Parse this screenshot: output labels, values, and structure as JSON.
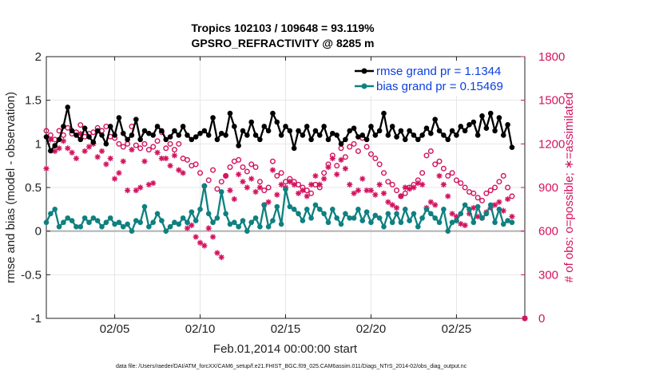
{
  "chart_data": {
    "type": "line",
    "title": "Tropics 102103 / 109648 = 93.119%",
    "subtitle": "GPSRO_REFRACTIVITY @ 8285 m",
    "xlabel": "Feb.01,2014 00:00:00 start",
    "ylabel": "rmse and bias (model - observation)",
    "y2label": "# of obs: o=possible; ∗=assimilated",
    "footnote": "data file: /Users/raeder/DAI/ATM_forcXX/CAM6_setup/f.e21.FHIST_BGC.f09_025.CAM6assim.011/Diags_NTrS_2014-02/obs_diag_output.nc",
    "xlim": [
      1,
      29
    ],
    "ylim": [
      -1,
      2
    ],
    "y2lim": [
      0,
      1800
    ],
    "xticks": [
      5,
      10,
      15,
      20,
      25
    ],
    "xticklabels": [
      "02/05",
      "02/10",
      "02/15",
      "02/20",
      "02/25"
    ],
    "yticks": [
      -1,
      -0.5,
      0,
      0.5,
      1,
      1.5,
      2
    ],
    "yticklabels": [
      "-1",
      "-0.5",
      "0",
      "0.5",
      "1",
      "1.5",
      "2"
    ],
    "y2ticks": [
      0,
      300,
      600,
      900,
      1200,
      1500,
      1800
    ],
    "y2ticklabels": [
      "0",
      "300",
      "600",
      "900",
      "1200",
      "1500",
      "1800"
    ],
    "grid": true,
    "legend": "top-right",
    "colors": {
      "rmse": "#000000",
      "bias": "#0f8080",
      "obs": "#d3135f",
      "zero": "#b0b0b0"
    },
    "series": [
      {
        "name": "rmse",
        "label": "rmse grand pr = 1.1344",
        "x": [
          1.0,
          1.25,
          1.5,
          1.75,
          2.0,
          2.25,
          2.5,
          2.75,
          3.0,
          3.25,
          3.5,
          3.75,
          4.0,
          4.25,
          4.5,
          4.75,
          5.0,
          5.25,
          5.5,
          5.75,
          6.0,
          6.25,
          6.5,
          6.75,
          7.0,
          7.25,
          7.5,
          7.75,
          8.0,
          8.25,
          8.5,
          8.75,
          9.0,
          9.25,
          9.5,
          9.75,
          10.0,
          10.25,
          10.5,
          10.75,
          11.0,
          11.25,
          11.5,
          11.75,
          12.0,
          12.25,
          12.5,
          12.75,
          13.0,
          13.25,
          13.5,
          13.75,
          14.0,
          14.25,
          14.5,
          14.75,
          15.0,
          15.25,
          15.5,
          15.75,
          16.0,
          16.25,
          16.5,
          16.75,
          17.0,
          17.25,
          17.5,
          17.75,
          18.0,
          18.25,
          18.5,
          18.75,
          19.0,
          19.25,
          19.5,
          19.75,
          20.0,
          20.25,
          20.5,
          20.75,
          21.0,
          21.25,
          21.5,
          21.75,
          22.0,
          22.25,
          22.5,
          22.75,
          23.0,
          23.25,
          23.5,
          23.75,
          24.0,
          24.25,
          24.5,
          24.75,
          25.0,
          25.25,
          25.5,
          25.75,
          26.0,
          26.25,
          26.5,
          26.75,
          27.0,
          27.25,
          27.5,
          27.75,
          28.0,
          28.25
        ],
        "values": [
          1.08,
          0.92,
          0.98,
          1.05,
          1.2,
          1.42,
          1.15,
          1.1,
          1.05,
          1.18,
          1.08,
          1.02,
          1.15,
          1.1,
          1.0,
          1.2,
          1.1,
          1.3,
          1.12,
          1.05,
          1.1,
          1.28,
          1.05,
          1.15,
          1.12,
          1.1,
          1.2,
          1.15,
          1.05,
          1.08,
          1.15,
          1.1,
          1.2,
          1.1,
          1.05,
          1.08,
          1.12,
          1.15,
          1.1,
          1.3,
          1.05,
          1.12,
          1.1,
          1.35,
          1.2,
          0.98,
          1.15,
          1.1,
          1.25,
          1.1,
          1.05,
          1.2,
          1.15,
          1.35,
          1.25,
          1.1,
          1.2,
          1.15,
          0.95,
          1.15,
          1.1,
          1.2,
          1.05,
          1.15,
          1.1,
          1.2,
          1.05,
          1.12,
          1.1,
          1.0,
          1.05,
          1.15,
          1.18,
          1.08,
          1.1,
          1.05,
          1.2,
          1.1,
          1.15,
          1.35,
          1.1,
          1.2,
          1.08,
          1.15,
          1.05,
          1.15,
          1.1,
          1.05,
          1.1,
          1.18,
          1.12,
          1.28,
          1.15,
          1.1,
          1.05,
          1.15,
          1.1,
          1.2,
          1.15,
          1.22,
          1.25,
          1.1,
          1.32,
          1.18,
          1.35,
          1.15,
          1.3,
          1.1,
          1.22,
          0.96
        ]
      },
      {
        "name": "bias",
        "label": "bias grand pr = 0.15469",
        "x": [
          1.0,
          1.25,
          1.5,
          1.75,
          2.0,
          2.25,
          2.5,
          2.75,
          3.0,
          3.25,
          3.5,
          3.75,
          4.0,
          4.25,
          4.5,
          4.75,
          5.0,
          5.25,
          5.5,
          5.75,
          6.0,
          6.25,
          6.5,
          6.75,
          7.0,
          7.25,
          7.5,
          7.75,
          8.0,
          8.25,
          8.5,
          8.75,
          9.0,
          9.25,
          9.5,
          9.75,
          10.0,
          10.25,
          10.5,
          10.75,
          11.0,
          11.25,
          11.5,
          11.75,
          12.0,
          12.25,
          12.5,
          12.75,
          13.0,
          13.25,
          13.5,
          13.75,
          14.0,
          14.25,
          14.5,
          14.75,
          15.0,
          15.25,
          15.5,
          15.75,
          16.0,
          16.25,
          16.5,
          16.75,
          17.0,
          17.25,
          17.5,
          17.75,
          18.0,
          18.25,
          18.5,
          18.75,
          19.0,
          19.25,
          19.5,
          19.75,
          20.0,
          20.25,
          20.5,
          20.75,
          21.0,
          21.25,
          21.5,
          21.75,
          22.0,
          22.25,
          22.5,
          22.75,
          23.0,
          23.25,
          23.5,
          23.75,
          24.0,
          24.25,
          24.5,
          24.75,
          25.0,
          25.25,
          25.5,
          25.75,
          26.0,
          26.25,
          26.5,
          26.75,
          27.0,
          27.25,
          27.5,
          27.75,
          28.0,
          28.25
        ],
        "values": [
          0.1,
          0.2,
          0.25,
          0.05,
          0.1,
          0.15,
          0.12,
          0.05,
          0.05,
          0.15,
          0.1,
          0.15,
          0.12,
          0.05,
          0.1,
          0.15,
          0.08,
          0.1,
          0.05,
          0.08,
          0.0,
          0.12,
          0.1,
          0.28,
          0.05,
          0.1,
          0.2,
          0.12,
          0.0,
          0.05,
          0.1,
          0.08,
          0.15,
          0.1,
          0.22,
          0.12,
          0.25,
          0.52,
          0.2,
          0.1,
          0.15,
          0.45,
          0.2,
          0.08,
          0.1,
          0.05,
          0.12,
          0.0,
          0.1,
          0.15,
          0.05,
          0.3,
          0.05,
          0.12,
          0.28,
          0.08,
          0.48,
          0.28,
          0.25,
          0.2,
          0.12,
          0.25,
          0.15,
          0.3,
          0.25,
          0.2,
          0.1,
          0.25,
          0.15,
          0.08,
          0.2,
          0.15,
          0.15,
          0.25,
          0.12,
          0.22,
          0.1,
          0.18,
          0.15,
          0.05,
          0.2,
          0.1,
          0.2,
          0.1,
          0.25,
          0.12,
          0.2,
          0.05,
          0.15,
          0.25,
          0.2,
          0.15,
          0.1,
          0.25,
          0.0,
          0.1,
          0.12,
          0.2,
          0.3,
          0.25,
          0.1,
          0.28,
          0.15,
          0.2,
          0.3,
          0.1,
          0.25,
          0.08,
          0.12,
          0.1
        ]
      },
      {
        "name": "obs_possible",
        "label": "possible",
        "axis": "right",
        "x": [
          1.0,
          1.25,
          1.5,
          1.75,
          2.0,
          2.25,
          2.5,
          2.75,
          3.0,
          3.25,
          3.5,
          3.75,
          4.0,
          4.25,
          4.5,
          4.75,
          5.0,
          5.25,
          5.5,
          5.75,
          6.0,
          6.25,
          6.5,
          6.75,
          7.0,
          7.25,
          7.5,
          7.75,
          8.0,
          8.25,
          8.5,
          8.75,
          9.0,
          9.25,
          9.5,
          9.75,
          10.0,
          10.25,
          10.5,
          10.75,
          11.0,
          11.25,
          11.5,
          11.75,
          12.0,
          12.25,
          12.5,
          12.75,
          13.0,
          13.25,
          13.5,
          13.75,
          14.0,
          14.25,
          14.5,
          14.75,
          15.0,
          15.25,
          15.5,
          15.75,
          16.0,
          16.25,
          16.5,
          16.75,
          17.0,
          17.25,
          17.5,
          17.75,
          18.0,
          18.25,
          18.5,
          18.75,
          19.0,
          19.25,
          19.5,
          19.75,
          20.0,
          20.25,
          20.5,
          20.75,
          21.0,
          21.25,
          21.5,
          21.75,
          22.0,
          22.25,
          22.5,
          22.75,
          23.0,
          23.25,
          23.5,
          23.75,
          24.0,
          24.25,
          24.5,
          24.75,
          25.0,
          25.25,
          25.5,
          25.75,
          26.0,
          26.25,
          26.5,
          26.75,
          27.0,
          27.25,
          27.5,
          27.75,
          28.0,
          28.25,
          29.0
        ],
        "values": [
          1290,
          1260,
          1230,
          1290,
          1260,
          1310,
          1270,
          1280,
          1330,
          1250,
          1270,
          1280,
          1310,
          1290,
          1320,
          1250,
          1240,
          1200,
          1180,
          1200,
          1320,
          1190,
          1170,
          1200,
          1160,
          1180,
          1220,
          1280,
          1170,
          1200,
          1160,
          1200,
          1100,
          1090,
          1050,
          1060,
          1000,
          910,
          950,
          1020,
          890,
          940,
          980,
          1040,
          1080,
          1090,
          1040,
          1010,
          1060,
          1040,
          940,
          880,
          900,
          1080,
          980,
          1000,
          940,
          960,
          940,
          920,
          900,
          880,
          860,
          920,
          900,
          1000,
          1060,
          1120,
          1050,
          1170,
          1110,
          1180,
          1200,
          1150,
          1240,
          1180,
          1130,
          1100,
          1060,
          1000,
          940,
          920,
          880,
          840,
          860,
          900,
          920,
          950,
          1000,
          1120,
          1150,
          1060,
          1080,
          1030,
          980,
          1000,
          950,
          930,
          900,
          870,
          860,
          830,
          810,
          860,
          880,
          900,
          940,
          980,
          900,
          840,
          0
        ]
      },
      {
        "name": "obs_assimilated",
        "label": "assimilated",
        "axis": "right",
        "x": [
          1.0,
          1.25,
          1.5,
          1.75,
          2.0,
          2.25,
          2.5,
          2.75,
          3.0,
          3.25,
          3.5,
          3.75,
          4.0,
          4.25,
          4.5,
          4.75,
          5.0,
          5.25,
          5.5,
          5.75,
          6.0,
          6.25,
          6.5,
          6.75,
          7.0,
          7.25,
          7.5,
          7.75,
          8.0,
          8.25,
          8.5,
          8.75,
          9.0,
          9.25,
          9.5,
          9.75,
          10.0,
          10.25,
          10.5,
          10.75,
          11.0,
          11.25,
          11.5,
          11.75,
          12.0,
          12.25,
          12.5,
          12.75,
          13.0,
          13.25,
          13.5,
          13.75,
          14.0,
          14.25,
          14.5,
          14.75,
          15.0,
          15.25,
          15.5,
          15.75,
          16.0,
          16.25,
          16.5,
          16.75,
          17.0,
          17.25,
          17.5,
          17.75,
          18.0,
          18.25,
          18.5,
          18.75,
          19.0,
          19.25,
          19.5,
          19.75,
          20.0,
          20.25,
          20.5,
          20.75,
          21.0,
          21.25,
          21.5,
          21.75,
          22.0,
          22.25,
          22.5,
          22.75,
          23.0,
          23.25,
          23.5,
          23.75,
          24.0,
          24.25,
          24.5,
          24.75,
          25.0,
          25.25,
          25.5,
          25.75,
          26.0,
          26.25,
          26.5,
          26.75,
          27.0,
          27.25,
          27.5,
          27.75,
          28.0,
          28.25,
          29.0
        ],
        "values": [
          1030,
          1230,
          1150,
          1170,
          1220,
          1170,
          1140,
          1100,
          1270,
          1150,
          1180,
          1200,
          1110,
          1150,
          1060,
          1100,
          960,
          1000,
          1080,
          880,
          1160,
          880,
          900,
          1080,
          920,
          930,
          1140,
          1100,
          1100,
          1050,
          1120,
          1020,
          1000,
          620,
          640,
          560,
          520,
          500,
          620,
          560,
          450,
          420,
          980,
          880,
          820,
          990,
          940,
          900,
          960,
          870,
          900,
          780,
          800,
          1020,
          850,
          920,
          900,
          940,
          920,
          860,
          880,
          840,
          920,
          980,
          920,
          960,
          1040,
          1100,
          990,
          1090,
          1030,
          920,
          860,
          880,
          960,
          880,
          880,
          850,
          920,
          860,
          800,
          780,
          760,
          840,
          900,
          890,
          900,
          930,
          920,
          760,
          800,
          780,
          980,
          920,
          840,
          720,
          700,
          650,
          640,
          720,
          760,
          700,
          690,
          730,
          760,
          780,
          800,
          740,
          820,
          700,
          0
        ]
      }
    ]
  }
}
